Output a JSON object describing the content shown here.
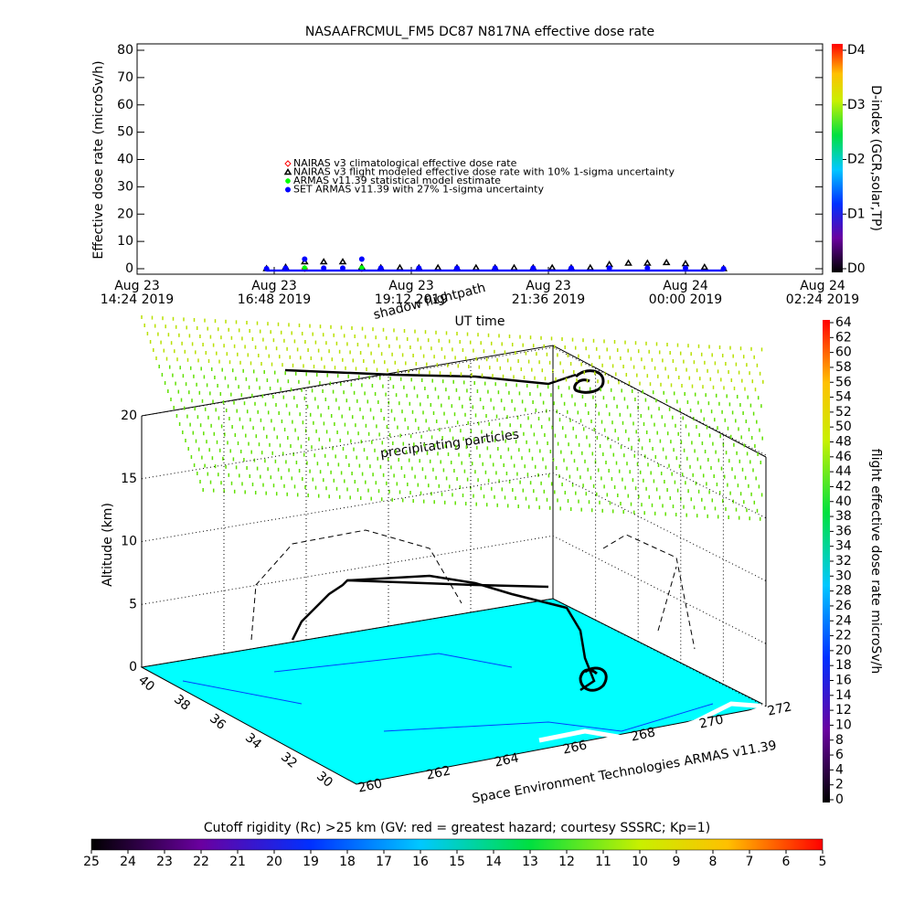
{
  "chart_data": [
    {
      "type": "scatter",
      "title": "NASAAFRCMUL_FM5 DC87 N817NA effective dose rate",
      "xlabel": "UT time",
      "ylabel": "Effective dose rate (microSv/h)",
      "xlim": [
        "2019-08-23T14:24",
        "2019-08-24T02:24"
      ],
      "xticks": [
        {
          "value": "2019-08-23T14:24",
          "label": "Aug 23\n14:24 2019"
        },
        {
          "value": "2019-08-23T16:48",
          "label": "Aug 23\n16:48 2019"
        },
        {
          "value": "2019-08-23T19:12",
          "label": "Aug 23\n19:12 2019"
        },
        {
          "value": "2019-08-23T21:36",
          "label": "Aug 23\n21:36 2019"
        },
        {
          "value": "2019-08-24T00:00",
          "label": "Aug 24\n00:00 2019"
        },
        {
          "value": "2019-08-24T02:24",
          "label": "Aug 24\n02:24 2019"
        }
      ],
      "ylim": [
        0,
        80
      ],
      "yticks": [
        0,
        10,
        20,
        30,
        40,
        50,
        60,
        70,
        80
      ],
      "series": [
        {
          "name": "NAIRAS v3 climatological effective dose rate",
          "color": "#ff0000",
          "marker": "diamond",
          "x": [
            "2019-08-23T17:20",
            "2019-08-23T18:20"
          ],
          "values": [
            0,
            0
          ]
        },
        {
          "name": "NAIRAS v3 flight modeled effective dose rate with 10% 1-sigma uncertainty",
          "color": "#000000",
          "marker": "triangle",
          "x": [
            "2019-08-23T16:40",
            "2019-08-23T17:00",
            "2019-08-23T17:20",
            "2019-08-23T17:40",
            "2019-08-23T18:00",
            "2019-08-23T18:20",
            "2019-08-23T18:40",
            "2019-08-23T19:00",
            "2019-08-23T19:20",
            "2019-08-23T19:40",
            "2019-08-23T20:00",
            "2019-08-23T20:20",
            "2019-08-23T20:40",
            "2019-08-23T21:00",
            "2019-08-23T21:20",
            "2019-08-23T21:40",
            "2019-08-23T22:00",
            "2019-08-23T22:20",
            "2019-08-23T22:40",
            "2019-08-23T23:00",
            "2019-08-23T23:20",
            "2019-08-23T23:40",
            "2019-08-24T00:00",
            "2019-08-24T00:20",
            "2019-08-24T00:40"
          ],
          "values": [
            0,
            0.5,
            2.5,
            2.5,
            2.5,
            0.5,
            0.3,
            0.3,
            0.3,
            0.3,
            0.3,
            0.3,
            0.3,
            0.3,
            0.3,
            0.3,
            0.3,
            0.3,
            1.5,
            2,
            2,
            2.2,
            1.8,
            0.5,
            0
          ]
        },
        {
          "name": "ARMAS v11.39 statistical model estimate",
          "color": "#00ff00",
          "marker": "asterisk",
          "x": [
            "2019-08-23T17:20",
            "2019-08-23T18:20"
          ],
          "values": [
            0.3,
            0.3
          ]
        },
        {
          "name": "SET ARMAS v11.39 with 27% 1-sigma uncertainty",
          "color": "#0000ff",
          "marker": "dot",
          "x": [
            "2019-08-23T16:40",
            "2019-08-23T17:00",
            "2019-08-23T17:20",
            "2019-08-23T17:40",
            "2019-08-23T18:00",
            "2019-08-23T18:20",
            "2019-08-23T18:40",
            "2019-08-23T19:20",
            "2019-08-23T20:00",
            "2019-08-23T20:40",
            "2019-08-23T21:20",
            "2019-08-23T22:00",
            "2019-08-23T22:40",
            "2019-08-23T23:20",
            "2019-08-24T00:00",
            "2019-08-24T00:40"
          ],
          "values": [
            0,
            0.2,
            3.5,
            0.2,
            0.2,
            3.5,
            0.2,
            0.2,
            0.2,
            0.2,
            0.2,
            0.2,
            0.2,
            0.2,
            0.2,
            0
          ]
        }
      ]
    },
    {
      "type": "colorbar",
      "title": "D-index (GCR,solar,TP)",
      "ylim": [
        0,
        4
      ],
      "yticks": [
        {
          "value": 0,
          "label": "D0"
        },
        {
          "value": 1,
          "label": "D1"
        },
        {
          "value": 2,
          "label": "D2"
        },
        {
          "value": 3,
          "label": "D3"
        },
        {
          "value": 4,
          "label": "D4"
        }
      ]
    },
    {
      "type": "surface3d",
      "zlabel": "Altitude (km)",
      "zlim": [
        0,
        20
      ],
      "zticks": [
        0,
        5,
        10,
        15,
        20
      ],
      "yticks": [
        40,
        38,
        36,
        34,
        32,
        30
      ],
      "xticks": [
        260,
        262,
        264,
        266,
        268,
        270,
        272
      ],
      "annotations": [
        "shadow flightpath",
        "precipitating particles",
        "Space Environment Technologies ARMAS v11.39"
      ]
    },
    {
      "type": "colorbar",
      "title": "flight effective dose rate microSv/h",
      "ylim": [
        0,
        64
      ],
      "yticks": [
        0,
        2,
        4,
        6,
        8,
        10,
        12,
        14,
        16,
        18,
        20,
        22,
        24,
        26,
        28,
        30,
        32,
        34,
        36,
        38,
        40,
        42,
        44,
        46,
        48,
        50,
        52,
        54,
        56,
        58,
        60,
        62,
        64
      ]
    },
    {
      "type": "colorbar",
      "title": "Cutoff rigidity (Rc) >25 km (GV: red = greatest hazard; courtesy SSSRC; Kp=1)",
      "xlim": [
        25,
        5
      ],
      "xticks": [
        25,
        24,
        23,
        22,
        21,
        20,
        19,
        18,
        17,
        16,
        15,
        14,
        13,
        12,
        11,
        10,
        9,
        8,
        7,
        6,
        5
      ]
    }
  ]
}
